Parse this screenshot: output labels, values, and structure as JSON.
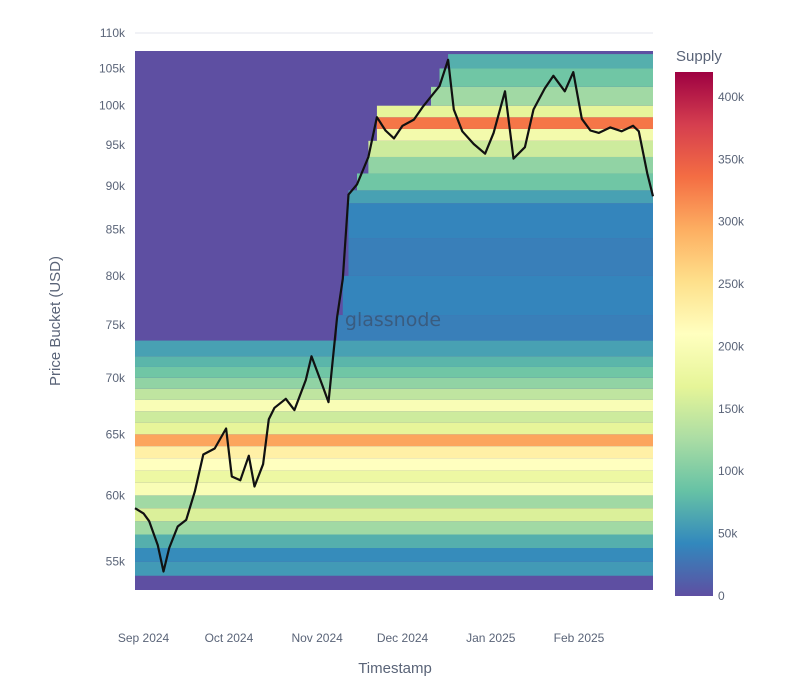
{
  "chart_data": {
    "type": "heatmap",
    "title": "",
    "xlabel": "Timestamp",
    "ylabel": "Price Bucket (USD)",
    "watermark": "glassnode",
    "x_range": [
      "2024-08-29",
      "2025-02-27"
    ],
    "y_range": [
      53000,
      110000
    ],
    "y_scale": "log",
    "x_ticks": [
      {
        "date": "2024-09-01",
        "label": "Sep 2024"
      },
      {
        "date": "2024-10-01",
        "label": "Oct 2024"
      },
      {
        "date": "2024-11-01",
        "label": "Nov 2024"
      },
      {
        "date": "2024-12-01",
        "label": "Dec 2024"
      },
      {
        "date": "2025-01-01",
        "label": "Jan 2025"
      },
      {
        "date": "2025-02-01",
        "label": "Feb 2025"
      }
    ],
    "y_ticks": [
      {
        "value": 55000,
        "label": "55k"
      },
      {
        "value": 60000,
        "label": "60k"
      },
      {
        "value": 65000,
        "label": "65k"
      },
      {
        "value": 70000,
        "label": "70k"
      },
      {
        "value": 75000,
        "label": "75k"
      },
      {
        "value": 80000,
        "label": "80k"
      },
      {
        "value": 85000,
        "label": "85k"
      },
      {
        "value": 90000,
        "label": "90k"
      },
      {
        "value": 95000,
        "label": "95k"
      },
      {
        "value": 100000,
        "label": "100k"
      },
      {
        "value": 105000,
        "label": "105k"
      },
      {
        "value": 110000,
        "label": "110k"
      }
    ],
    "colorbar": {
      "title": "Supply",
      "min": 0,
      "max": 420000,
      "colorscale": "Spectral (reversed)",
      "ticks": [
        {
          "value": 0,
          "label": "0"
        },
        {
          "value": 50000,
          "label": "50k"
        },
        {
          "value": 100000,
          "label": "100k"
        },
        {
          "value": 150000,
          "label": "150k"
        },
        {
          "value": 200000,
          "label": "200k"
        },
        {
          "value": 250000,
          "label": "250k"
        },
        {
          "value": 300000,
          "label": "300k"
        },
        {
          "value": 350000,
          "label": "350k"
        },
        {
          "value": 400000,
          "label": "400k"
        }
      ]
    },
    "heatmap_bands": [
      {
        "low": 54000,
        "high": 55000,
        "supply": 55000
      },
      {
        "low": 55000,
        "high": 56000,
        "supply": 45000
      },
      {
        "low": 56000,
        "high": 57000,
        "supply": 70000
      },
      {
        "low": 57000,
        "high": 58000,
        "supply": 120000
      },
      {
        "low": 58000,
        "high": 59000,
        "supply": 160000
      },
      {
        "low": 59000,
        "high": 60000,
        "supply": 120000
      },
      {
        "low": 60000,
        "high": 61000,
        "supply": 200000
      },
      {
        "low": 61000,
        "high": 62000,
        "supply": 180000
      },
      {
        "low": 62000,
        "high": 63000,
        "supply": 210000
      },
      {
        "low": 63000,
        "high": 64000,
        "supply": 230000
      },
      {
        "low": 64000,
        "high": 65000,
        "supply": 300000
      },
      {
        "low": 65000,
        "high": 66000,
        "supply": 170000
      },
      {
        "low": 66000,
        "high": 67000,
        "supply": 150000
      },
      {
        "low": 67000,
        "high": 68000,
        "supply": 200000
      },
      {
        "low": 68000,
        "high": 69000,
        "supply": 140000
      },
      {
        "low": 69000,
        "high": 70000,
        "supply": 110000
      },
      {
        "low": 70000,
        "high": 71000,
        "supply": 90000
      },
      {
        "low": 71000,
        "high": 72000,
        "supply": 75000
      },
      {
        "low": 72000,
        "high": 73500,
        "supply": 60000
      },
      {
        "low": 73500,
        "high": 76000,
        "supply": 35000
      },
      {
        "low": 76000,
        "high": 80000,
        "supply": 40000
      },
      {
        "low": 80000,
        "high": 84000,
        "supply": 35000
      },
      {
        "low": 84000,
        "high": 88000,
        "supply": 40000
      },
      {
        "low": 88000,
        "high": 89500,
        "supply": 60000
      },
      {
        "low": 89500,
        "high": 91500,
        "supply": 90000
      },
      {
        "low": 91500,
        "high": 93500,
        "supply": 110000
      },
      {
        "low": 93500,
        "high": 95500,
        "supply": 150000
      },
      {
        "low": 95500,
        "high": 97000,
        "supply": 190000
      },
      {
        "low": 97000,
        "high": 98500,
        "supply": 330000
      },
      {
        "low": 98500,
        "high": 100000,
        "supply": 170000
      },
      {
        "low": 100000,
        "high": 102500,
        "supply": 120000
      },
      {
        "low": 102500,
        "high": 105000,
        "supply": 90000
      },
      {
        "low": 105000,
        "high": 107000,
        "supply": 70000
      }
    ],
    "series": [
      {
        "type": "line",
        "x": [
          "2024-08-29",
          "2024-09-01",
          "2024-09-03",
          "2024-09-06",
          "2024-09-08",
          "2024-09-10",
          "2024-09-13",
          "2024-09-16",
          "2024-09-19",
          "2024-09-22",
          "2024-09-26",
          "2024-09-30",
          "2024-10-02",
          "2024-10-05",
          "2024-10-08",
          "2024-10-10",
          "2024-10-13",
          "2024-10-15",
          "2024-10-17",
          "2024-10-21",
          "2024-10-24",
          "2024-10-28",
          "2024-10-30",
          "2024-11-03",
          "2024-11-05",
          "2024-11-08",
          "2024-11-10",
          "2024-11-12",
          "2024-11-15",
          "2024-11-19",
          "2024-11-22",
          "2024-11-25",
          "2024-11-28",
          "2024-12-01",
          "2024-12-05",
          "2024-12-08",
          "2024-12-11",
          "2024-12-14",
          "2024-12-17",
          "2024-12-19",
          "2024-12-22",
          "2024-12-26",
          "2024-12-30",
          "2025-01-02",
          "2025-01-06",
          "2025-01-09",
          "2025-01-13",
          "2025-01-16",
          "2025-01-20",
          "2025-01-23",
          "2025-01-27",
          "2025-01-30",
          "2025-02-02",
          "2025-02-05",
          "2025-02-08",
          "2025-02-12",
          "2025-02-16",
          "2025-02-20",
          "2025-02-22",
          "2025-02-25",
          "2025-02-27"
        ],
        "y": [
          59000,
          58600,
          58000,
          56200,
          54300,
          56000,
          57600,
          58100,
          60300,
          63300,
          63800,
          65500,
          61500,
          61200,
          63200,
          60700,
          62500,
          66300,
          67300,
          68100,
          67100,
          69800,
          72000,
          69200,
          67800,
          75800,
          79700,
          89000,
          90200,
          93500,
          98500,
          96800,
          95800,
          97400,
          98200,
          99800,
          101200,
          102600,
          106200,
          99500,
          96700,
          95100,
          93900,
          96500,
          101900,
          93300,
          94700,
          99500,
          102300,
          104000,
          101900,
          104500,
          98300,
          96800,
          96500,
          97200,
          96700,
          97400,
          96700,
          91500,
          88800
        ]
      }
    ]
  }
}
